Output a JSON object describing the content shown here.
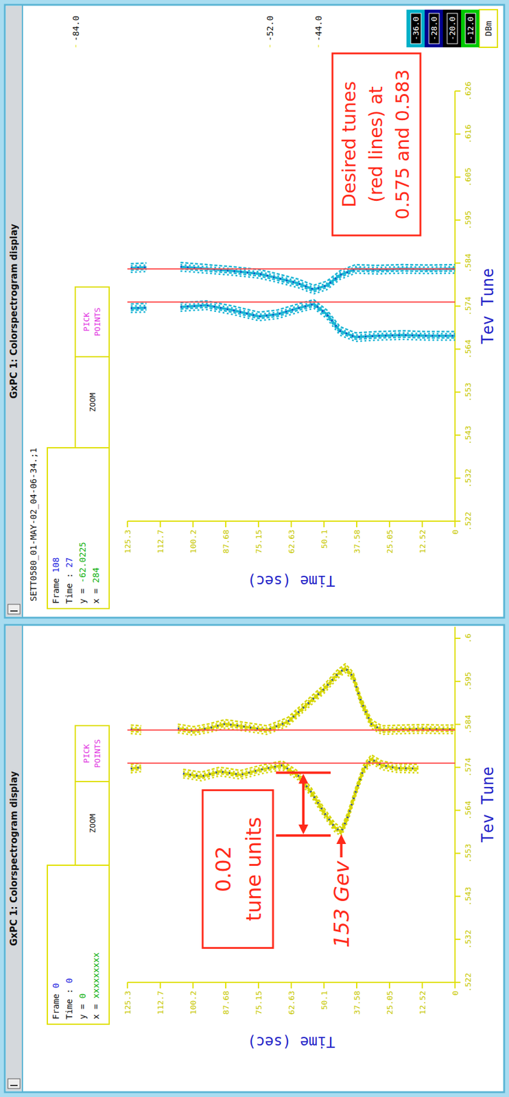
{
  "windows": [
    {
      "title": "GxPC 1: Colorspectrogram display",
      "info": [
        {
          "label": "Frame",
          "value": 0
        },
        {
          "label": "Time :",
          "value": 0
        },
        {
          "label": "y =",
          "value": 0
        },
        {
          "label": "x =",
          "value": "xxxxxxxxx"
        }
      ],
      "buttons": [
        "ZOOM",
        "PICK POINTS"
      ]
    },
    {
      "title": "GxPC 1: Colorspectrogram display",
      "subtitle": "SETT0580_01-MAY-02_04-06-34.;1",
      "info": [
        {
          "label": "Frame",
          "value": 108
        },
        {
          "label": "Time :",
          "value": 27
        },
        {
          "label": "y =",
          "value": -62.0225
        },
        {
          "label": "x =",
          "value": 284
        }
      ],
      "buttons": [
        "ZOOM",
        "PICK POINTS"
      ]
    }
  ],
  "chart_data": [
    {
      "type": "line",
      "xlabel": "Tev Tune",
      "ylabel": "Time (sec)",
      "xlim": [
        0.522,
        0.608
      ],
      "xticks": [
        {
          "value": 0.522,
          "label": ".522"
        },
        {
          "value": 0.5324,
          "label": ".532"
        },
        {
          "value": 0.5428,
          "label": ".543"
        },
        {
          "value": 0.5532,
          "label": ".553"
        },
        {
          "value": 0.5636,
          "label": ".564"
        },
        {
          "value": 0.574,
          "label": ".574"
        },
        {
          "value": 0.5844,
          "label": ".584"
        },
        {
          "value": 0.5948,
          "label": ".595"
        },
        {
          "value": 0.6052,
          "label": ".6"
        }
      ],
      "ylim": [
        0,
        125.3
      ],
      "yticks": [
        0,
        12.52,
        25.05,
        37.58,
        50.1,
        62.63,
        75.15,
        87.68,
        100.2,
        112.7,
        125.3
      ],
      "series": [
        {
          "color": "#d6d600",
          "x": [
            0.5737,
            0.574,
            null,
            0.5725,
            0.5718,
            0.573,
            0.5722,
            0.5735,
            0.5745,
            0.572,
            0.568,
            0.563,
            0.5595,
            0.5584,
            0.562,
            0.568,
            0.5735,
            0.576,
            0.5745,
            0.5738,
            0.5737
          ],
          "values": [
            124,
            120,
            null,
            104,
            97,
            90,
            82,
            74,
            66,
            60,
            55,
            50,
            46,
            43.5,
            41,
            38,
            35,
            32,
            28,
            22,
            14
          ]
        },
        {
          "color": "#d6d600",
          "x": [
            0.5832,
            0.583,
            null,
            0.5834,
            0.5828,
            0.5835,
            0.5845,
            0.5838,
            0.583,
            0.585,
            0.589,
            0.593,
            0.5965,
            0.598,
            0.596,
            0.59,
            0.5845,
            0.583,
            0.5832,
            0.5833,
            0.5832,
            0.5832
          ],
          "values": [
            124,
            120,
            null,
            106,
            100,
            94,
            88,
            80,
            72,
            64,
            57,
            50,
            45,
            42,
            39,
            36,
            32,
            28,
            20,
            12,
            5,
            0
          ]
        }
      ],
      "red_lines": [
        0.575,
        0.583
      ],
      "bracket": {
        "text": [
          "0.02",
          "tune units"
        ],
        "x": [
          0.5575,
          0.5727
        ],
        "y": 58
      },
      "pointer": {
        "text": "153 Gev",
        "x": 0.5584,
        "y": 43.5
      }
    },
    {
      "type": "line",
      "xlabel": "Tev Tune",
      "ylabel": "Time (sec)",
      "xlim": [
        0.522,
        0.626
      ],
      "xticks": [
        {
          "value": 0.522,
          "label": ".522"
        },
        {
          "value": 0.5324,
          "label": ".532"
        },
        {
          "value": 0.5428,
          "label": ".543"
        },
        {
          "value": 0.5532,
          "label": ".553"
        },
        {
          "value": 0.5636,
          "label": ".564"
        },
        {
          "value": 0.574,
          "label": ".574"
        },
        {
          "value": 0.5844,
          "label": ".584"
        },
        {
          "value": 0.5948,
          "label": ".595"
        },
        {
          "value": 0.6052,
          "label": ".605"
        },
        {
          "value": 0.6156,
          "label": ".616"
        },
        {
          "value": 0.626,
          "label": ".626"
        }
      ],
      "ylim": [
        0,
        125.3
      ],
      "yticks": [
        0,
        12.52,
        25.05,
        37.58,
        50.1,
        62.63,
        75.15,
        87.68,
        100.2,
        112.7,
        125.3
      ],
      "series": [
        {
          "color": "#18b4d4",
          "x": [
            0.5735,
            0.5736,
            null,
            0.5738,
            0.5742,
            0.573,
            0.5715,
            0.572,
            0.5735,
            0.5745,
            0.572,
            0.568,
            0.5665,
            0.5668,
            0.567,
            0.5668,
            0.5668
          ],
          "values": [
            124,
            118,
            null,
            105,
            95,
            85,
            75,
            68,
            60,
            54,
            49,
            44,
            38,
            30,
            20,
            10,
            0
          ]
        },
        {
          "color": "#18b4d4",
          "x": [
            0.5832,
            0.5834,
            null,
            0.5835,
            0.583,
            0.5825,
            0.5818,
            0.5808,
            0.5795,
            0.578,
            0.579,
            0.5815,
            0.583,
            0.5828,
            0.583,
            0.5829,
            0.583
          ],
          "values": [
            124,
            118,
            null,
            105,
            95,
            85,
            75,
            68,
            60,
            54,
            49,
            44,
            38,
            30,
            20,
            10,
            0
          ]
        }
      ],
      "red_lines": [
        0.575,
        0.583
      ],
      "note": {
        "text": [
          "Desired tunes",
          "(red lines) at",
          "0.575 and 0.583"
        ]
      },
      "colorbar": {
        "title": "DBm",
        "ticks": [
          {
            "value": -12,
            "label": "-12.0"
          },
          {
            "value": -20,
            "label": "-20.0"
          },
          {
            "value": -28,
            "label": "-28.0"
          },
          {
            "value": -36,
            "label": "-36.0"
          },
          {
            "value": -44,
            "label": "-44.0"
          },
          {
            "value": -52,
            "label": "-52.0"
          },
          {
            "value": -84,
            "label": "-84.0"
          }
        ],
        "colors": [
          "#00c800",
          "#000000",
          "#000090",
          "#00b0c8"
        ]
      }
    }
  ]
}
